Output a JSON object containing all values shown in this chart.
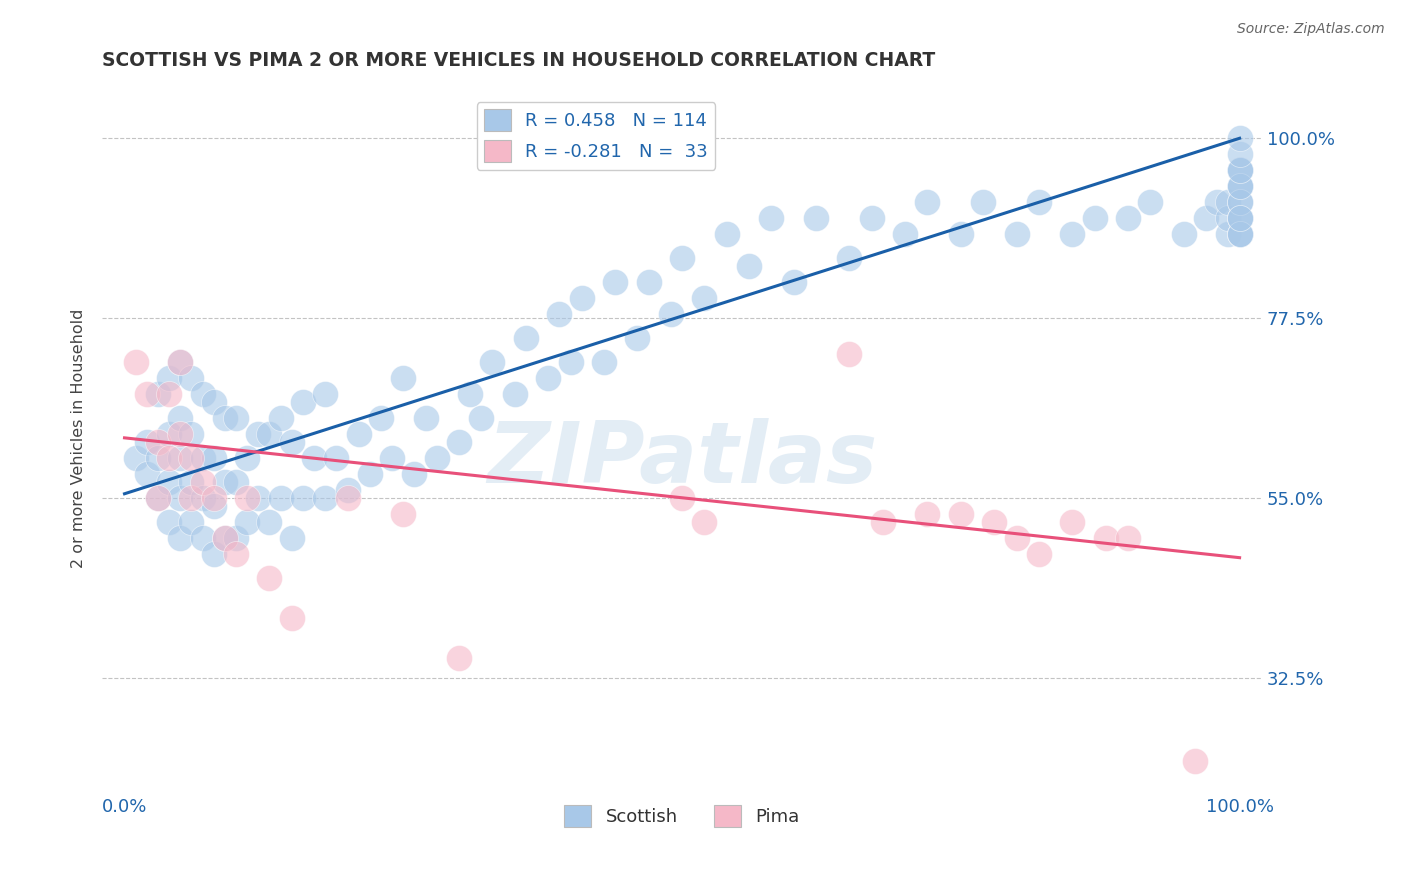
{
  "title": "SCOTTISH VS PIMA 2 OR MORE VEHICLES IN HOUSEHOLD CORRELATION CHART",
  "source_text": "Source: ZipAtlas.com",
  "ylabel": "2 or more Vehicles in Household",
  "y_ticks": [
    0.325,
    0.55,
    0.775,
    1.0
  ],
  "y_tick_labels": [
    "32.5%",
    "55.0%",
    "77.5%",
    "100.0%"
  ],
  "xlim": [
    -0.02,
    1.02
  ],
  "ylim": [
    0.18,
    1.07
  ],
  "watermark": "ZIPatlas",
  "blue_R": 0.458,
  "blue_N": 114,
  "pink_R": -0.281,
  "pink_N": 33,
  "blue_color": "#a8c8e8",
  "pink_color": "#f5b8c8",
  "blue_line_color": "#1a5fa8",
  "pink_line_color": "#e8507a",
  "legend_label_scottish": "Scottish",
  "legend_label_pima": "Pima",
  "blue_line_x0": 0.0,
  "blue_line_y0": 0.555,
  "blue_line_x1": 1.0,
  "blue_line_y1": 1.0,
  "pink_line_x0": 0.0,
  "pink_line_y0": 0.625,
  "pink_line_x1": 1.0,
  "pink_line_y1": 0.475,
  "blue_scatter_x": [
    0.01,
    0.02,
    0.02,
    0.03,
    0.03,
    0.03,
    0.04,
    0.04,
    0.04,
    0.04,
    0.05,
    0.05,
    0.05,
    0.05,
    0.05,
    0.06,
    0.06,
    0.06,
    0.06,
    0.07,
    0.07,
    0.07,
    0.07,
    0.08,
    0.08,
    0.08,
    0.08,
    0.09,
    0.09,
    0.09,
    0.1,
    0.1,
    0.1,
    0.11,
    0.11,
    0.12,
    0.12,
    0.13,
    0.13,
    0.14,
    0.14,
    0.15,
    0.15,
    0.16,
    0.16,
    0.17,
    0.18,
    0.18,
    0.19,
    0.2,
    0.21,
    0.22,
    0.23,
    0.24,
    0.25,
    0.26,
    0.27,
    0.28,
    0.3,
    0.31,
    0.32,
    0.33,
    0.35,
    0.36,
    0.38,
    0.39,
    0.4,
    0.41,
    0.43,
    0.44,
    0.46,
    0.47,
    0.49,
    0.5,
    0.52,
    0.54,
    0.56,
    0.58,
    0.6,
    0.62,
    0.65,
    0.67,
    0.7,
    0.72,
    0.75,
    0.77,
    0.8,
    0.82,
    0.85,
    0.87,
    0.9,
    0.92,
    0.95,
    0.97,
    0.98,
    0.99,
    0.99,
    0.99,
    1.0,
    1.0,
    1.0,
    1.0,
    1.0,
    1.0,
    1.0,
    1.0,
    1.0,
    1.0,
    1.0,
    1.0,
    1.0,
    1.0,
    1.0,
    1.0
  ],
  "blue_scatter_y": [
    0.6,
    0.58,
    0.62,
    0.55,
    0.6,
    0.68,
    0.52,
    0.57,
    0.63,
    0.7,
    0.5,
    0.55,
    0.6,
    0.65,
    0.72,
    0.52,
    0.57,
    0.63,
    0.7,
    0.5,
    0.55,
    0.6,
    0.68,
    0.48,
    0.54,
    0.6,
    0.67,
    0.5,
    0.57,
    0.65,
    0.5,
    0.57,
    0.65,
    0.52,
    0.6,
    0.55,
    0.63,
    0.52,
    0.63,
    0.55,
    0.65,
    0.5,
    0.62,
    0.55,
    0.67,
    0.6,
    0.55,
    0.68,
    0.6,
    0.56,
    0.63,
    0.58,
    0.65,
    0.6,
    0.7,
    0.58,
    0.65,
    0.6,
    0.62,
    0.68,
    0.65,
    0.72,
    0.68,
    0.75,
    0.7,
    0.78,
    0.72,
    0.8,
    0.72,
    0.82,
    0.75,
    0.82,
    0.78,
    0.85,
    0.8,
    0.88,
    0.84,
    0.9,
    0.82,
    0.9,
    0.85,
    0.9,
    0.88,
    0.92,
    0.88,
    0.92,
    0.88,
    0.92,
    0.88,
    0.9,
    0.9,
    0.92,
    0.88,
    0.9,
    0.92,
    0.88,
    0.9,
    0.92,
    0.94,
    0.96,
    0.88,
    0.9,
    0.92,
    0.94,
    0.96,
    0.88,
    0.9,
    0.92,
    0.94,
    0.96,
    0.98,
    0.88,
    0.9,
    1.0
  ],
  "pink_scatter_x": [
    0.01,
    0.02,
    0.03,
    0.03,
    0.04,
    0.04,
    0.05,
    0.05,
    0.06,
    0.06,
    0.07,
    0.08,
    0.09,
    0.1,
    0.11,
    0.13,
    0.15,
    0.2,
    0.25,
    0.3,
    0.5,
    0.52,
    0.65,
    0.68,
    0.72,
    0.75,
    0.78,
    0.8,
    0.82,
    0.85,
    0.88,
    0.9,
    0.96
  ],
  "pink_scatter_y": [
    0.72,
    0.68,
    0.62,
    0.55,
    0.68,
    0.6,
    0.63,
    0.72,
    0.6,
    0.55,
    0.57,
    0.55,
    0.5,
    0.48,
    0.55,
    0.45,
    0.4,
    0.55,
    0.53,
    0.35,
    0.55,
    0.52,
    0.73,
    0.52,
    0.53,
    0.53,
    0.52,
    0.5,
    0.48,
    0.52,
    0.5,
    0.5,
    0.22
  ]
}
